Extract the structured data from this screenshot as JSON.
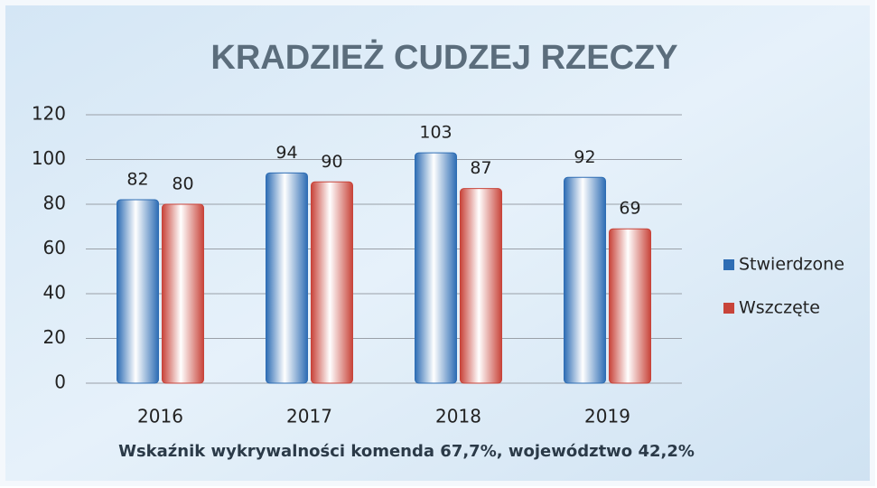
{
  "chart_data": {
    "type": "bar",
    "title": "KRADZIEŻ CUDZEJ RZECZY",
    "categories": [
      "2016",
      "2017",
      "2018",
      "2019"
    ],
    "series": [
      {
        "name": "Stwierdzone",
        "color": "#2e6db4",
        "values": [
          82,
          94,
          103,
          92
        ]
      },
      {
        "name": "Wszczęte",
        "color": "#c8443a",
        "values": [
          80,
          90,
          87,
          69
        ]
      }
    ],
    "ylim": [
      0,
      120
    ],
    "yticks": [
      0,
      20,
      40,
      60,
      80,
      100,
      120
    ],
    "grid": true,
    "legend": "right",
    "annotation": "Wskaźnik  wykrywalności  komenda 67,7%, województwo 42,2%"
  }
}
